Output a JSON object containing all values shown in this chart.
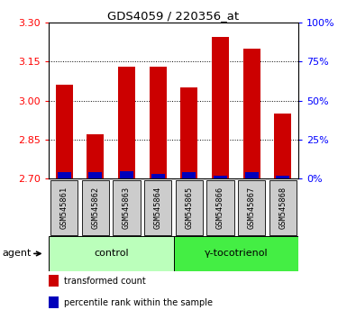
{
  "title": "GDS4059 / 220356_at",
  "samples": [
    "GSM545861",
    "GSM545862",
    "GSM545863",
    "GSM545864",
    "GSM545865",
    "GSM545866",
    "GSM545867",
    "GSM545868"
  ],
  "red_values": [
    3.06,
    2.87,
    3.13,
    3.13,
    3.05,
    3.245,
    3.2,
    2.95
  ],
  "blue_values": [
    4.0,
    4.0,
    5.0,
    3.0,
    4.0,
    2.0,
    4.0,
    2.0
  ],
  "ylim_left": [
    2.7,
    3.3
  ],
  "ylim_right": [
    0,
    100
  ],
  "yticks_left": [
    2.7,
    2.85,
    3.0,
    3.15,
    3.3
  ],
  "yticks_right": [
    0,
    25,
    50,
    75,
    100
  ],
  "groups": [
    {
      "label": "control",
      "start": 0,
      "end": 4,
      "color": "#bbffbb"
    },
    {
      "label": "γ-tocotrienol",
      "start": 4,
      "end": 8,
      "color": "#44ee44"
    }
  ],
  "agent_label": "agent",
  "bar_color_red": "#cc0000",
  "bar_color_blue": "#0000bb",
  "sample_box_color": "#cccccc",
  "plot_bg_color": "#ffffff",
  "legend_items": [
    {
      "color": "#cc0000",
      "label": "transformed count"
    },
    {
      "color": "#0000bb",
      "label": "percentile rank within the sample"
    }
  ]
}
